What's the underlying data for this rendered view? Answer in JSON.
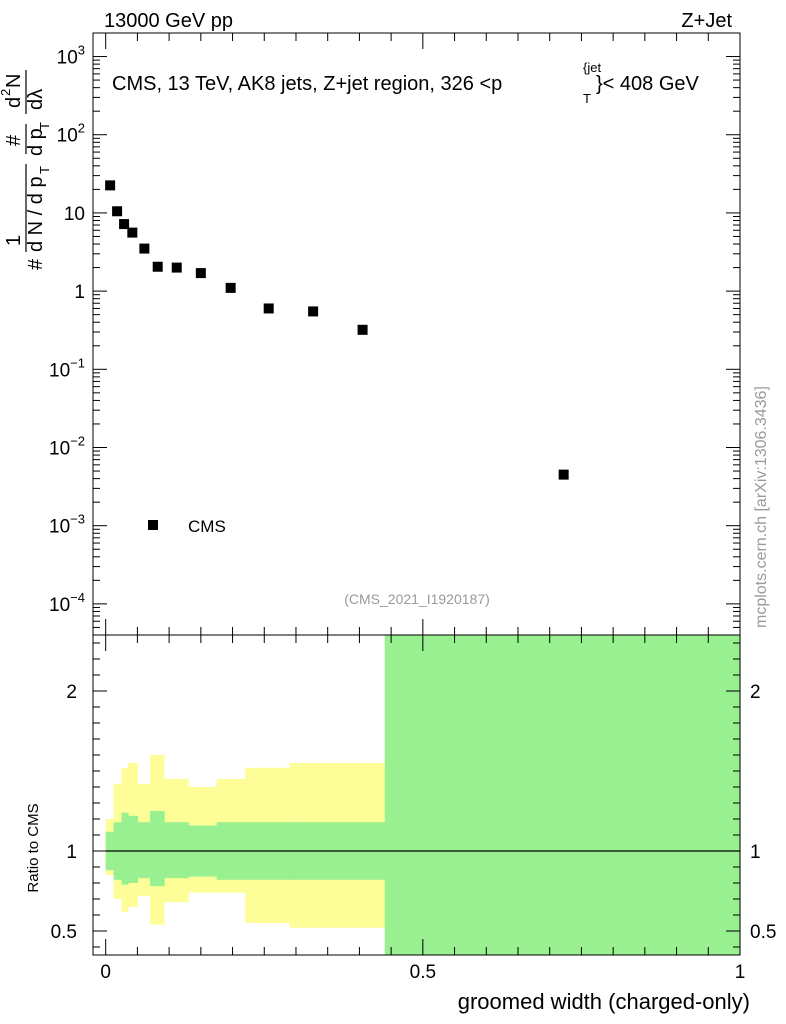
{
  "header": {
    "left": "13000 GeV pp",
    "right": "Z+Jet"
  },
  "side_label": "mcplots.cern.ch [arXiv:1306.3436]",
  "chart_data": [
    {
      "type": "scatter",
      "panel": "main",
      "title": "CMS, 13 TeV, AK8 jets, Z+jet region, 326 <p",
      "title_sup": "{jet",
      "title_sub": "T",
      "title_tail": "}< 408 GeV",
      "ylabel_parts": {
        "hash": "#",
        "one": "1",
        "dN": "d N / d p",
        "T": "T",
        "hash2": "#",
        "dp": "d p",
        "T2": "T",
        "d2N": "d",
        "two": "2",
        "N": "N",
        "dlambda": "dλ"
      },
      "yscale": "log",
      "ylim": [
        4e-05,
        2000
      ],
      "xlim": [
        -0.02,
        1.0
      ],
      "y_ticks": [
        {
          "v": 1000,
          "base": "10",
          "exp": "3"
        },
        {
          "v": 100,
          "base": "10",
          "exp": "2"
        },
        {
          "v": 10,
          "base": "10",
          "exp": ""
        },
        {
          "v": 1,
          "base": "1",
          "exp": ""
        },
        {
          "v": 0.1,
          "base": "10",
          "exp": "−1"
        },
        {
          "v": 0.01,
          "base": "10",
          "exp": "−2"
        },
        {
          "v": 0.001,
          "base": "10",
          "exp": "−3"
        },
        {
          "v": 0.0001,
          "base": "10",
          "exp": "−4"
        }
      ],
      "series": [
        {
          "name": "CMS",
          "marker": "square",
          "x": [
            0.007,
            0.018,
            0.029,
            0.042,
            0.061,
            0.082,
            0.112,
            0.15,
            0.197,
            0.257,
            0.327,
            0.405,
            0.722
          ],
          "y": [
            22.5,
            10.5,
            7.2,
            5.6,
            3.5,
            2.05,
            2.0,
            1.7,
            1.1,
            0.6,
            0.55,
            0.32,
            0.0045
          ]
        }
      ],
      "legend": {
        "label": "CMS",
        "placement": "middle-left"
      },
      "watermark": "(CMS_2021_I1920187)"
    },
    {
      "type": "area",
      "panel": "ratio",
      "ylabel": "Ratio to CMS",
      "xlabel": "groomed width (charged-only)",
      "ylim": [
        0.35,
        2.35
      ],
      "xlim": [
        -0.02,
        1.0
      ],
      "x_ticks": [
        {
          "v": 0,
          "label": "0"
        },
        {
          "v": 0.5,
          "label": "0.5"
        },
        {
          "v": 1,
          "label": "1"
        }
      ],
      "y_ticks": [
        {
          "v": 2,
          "label": "2"
        },
        {
          "v": 1,
          "label": "1"
        },
        {
          "v": 0.5,
          "label": "0.5"
        }
      ],
      "reference_line": 1,
      "bin_edges": [
        0.0,
        0.0125,
        0.025,
        0.035,
        0.05,
        0.07,
        0.092,
        0.13,
        0.175,
        0.22,
        0.29,
        0.37,
        0.44,
        1.0
      ],
      "stat_band": [
        {
          "lo": 0.88,
          "hi": 1.12
        },
        {
          "lo": 0.82,
          "hi": 1.18
        },
        {
          "lo": 0.79,
          "hi": 1.24
        },
        {
          "lo": 0.8,
          "hi": 1.22
        },
        {
          "lo": 0.83,
          "hi": 1.18
        },
        {
          "lo": 0.78,
          "hi": 1.25
        },
        {
          "lo": 0.83,
          "hi": 1.18
        },
        {
          "lo": 0.84,
          "hi": 1.16
        },
        {
          "lo": 0.82,
          "hi": 1.18
        },
        {
          "lo": 0.82,
          "hi": 1.18
        },
        {
          "lo": 0.82,
          "hi": 1.18
        },
        {
          "lo": 0.82,
          "hi": 1.18
        },
        {
          "lo": 0.35,
          "hi": 2.35
        }
      ],
      "total_band": [
        {
          "lo": 0.85,
          "hi": 1.2
        },
        {
          "lo": 0.7,
          "hi": 1.42
        },
        {
          "lo": 0.62,
          "hi": 1.52
        },
        {
          "lo": 0.65,
          "hi": 1.55
        },
        {
          "lo": 0.72,
          "hi": 1.42
        },
        {
          "lo": 0.54,
          "hi": 1.6
        },
        {
          "lo": 0.68,
          "hi": 1.45
        },
        {
          "lo": 0.74,
          "hi": 1.4
        },
        {
          "lo": 0.74,
          "hi": 1.45
        },
        {
          "lo": 0.55,
          "hi": 1.52
        },
        {
          "lo": 0.52,
          "hi": 1.55
        },
        {
          "lo": 0.52,
          "hi": 1.55
        },
        {
          "lo": 0.35,
          "hi": 2.35
        }
      ],
      "colors": {
        "stat": "#99f090",
        "total": "#fefe99",
        "line": "#000000"
      }
    }
  ]
}
